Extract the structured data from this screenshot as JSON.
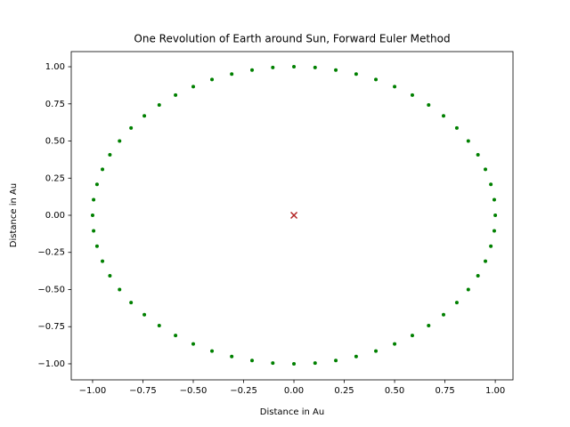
{
  "chart_data": {
    "type": "scatter",
    "title": "One Revolution of Earth around Sun, Forward Euler Method",
    "xlabel": "Distance in Au",
    "ylabel": "Distance in Au",
    "xlim": [
      -1.106,
      1.088
    ],
    "ylim": [
      -1.108,
      1.102
    ],
    "xticks": [
      {
        "value": -1,
        "label": "−1.00"
      },
      {
        "value": -0.75,
        "label": "−0.75"
      },
      {
        "value": -0.5,
        "label": "−0.50"
      },
      {
        "value": -0.25,
        "label": "−0.25"
      },
      {
        "value": 0,
        "label": "0.00"
      },
      {
        "value": 0.25,
        "label": "0.25"
      },
      {
        "value": 0.5,
        "label": "0.50"
      },
      {
        "value": 0.75,
        "label": "0.75"
      },
      {
        "value": 1,
        "label": "1.00"
      }
    ],
    "yticks": [
      {
        "value": -1,
        "label": "−1.00"
      },
      {
        "value": -0.75,
        "label": "−0.75"
      },
      {
        "value": -0.5,
        "label": "−0.50"
      },
      {
        "value": -0.25,
        "label": "−0.25"
      },
      {
        "value": 0,
        "label": "0.00"
      },
      {
        "value": 0.25,
        "label": "0.25"
      },
      {
        "value": 0.5,
        "label": "0.50"
      },
      {
        "value": 0.75,
        "label": "0.75"
      },
      {
        "value": 1,
        "label": "1.00"
      }
    ],
    "grid": false,
    "series": [
      {
        "color": "#008000",
        "marker": "dot",
        "x": [
          1,
          0.995,
          0.978,
          0.951,
          0.914,
          0.866,
          0.809,
          0.743,
          0.669,
          0.588,
          0.5,
          0.407,
          0.309,
          0.208,
          0.105,
          0,
          -0.105,
          -0.208,
          -0.309,
          -0.407,
          -0.5,
          -0.588,
          -0.669,
          -0.743,
          -0.809,
          -0.866,
          -0.914,
          -0.951,
          -0.978,
          -0.995,
          -1,
          -0.995,
          -0.978,
          -0.951,
          -0.914,
          -0.866,
          -0.809,
          -0.743,
          -0.669,
          -0.588,
          -0.5,
          -0.407,
          -0.309,
          -0.208,
          -0.105,
          0,
          0.105,
          0.208,
          0.309,
          0.407,
          0.5,
          0.588,
          0.669,
          0.743,
          0.809,
          0.866,
          0.914,
          0.951,
          0.978,
          0.995
        ],
        "values": [
          0,
          0.105,
          0.208,
          0.309,
          0.407,
          0.5,
          0.588,
          0.669,
          0.743,
          0.809,
          0.866,
          0.914,
          0.951,
          0.978,
          0.995,
          1,
          0.995,
          0.978,
          0.951,
          0.914,
          0.866,
          0.809,
          0.743,
          0.669,
          0.588,
          0.5,
          0.407,
          0.309,
          0.208,
          0.105,
          0,
          -0.105,
          -0.208,
          -0.309,
          -0.407,
          -0.5,
          -0.588,
          -0.669,
          -0.743,
          -0.809,
          -0.866,
          -0.914,
          -0.951,
          -0.978,
          -0.995,
          -1,
          -0.995,
          -0.978,
          -0.951,
          -0.914,
          -0.866,
          -0.809,
          -0.743,
          -0.669,
          -0.588,
          -0.5,
          -0.407,
          -0.309,
          -0.208,
          -0.105
        ]
      },
      {
        "color": "#b22222",
        "marker": "x",
        "x": [
          0
        ],
        "values": [
          0
        ]
      }
    ]
  }
}
